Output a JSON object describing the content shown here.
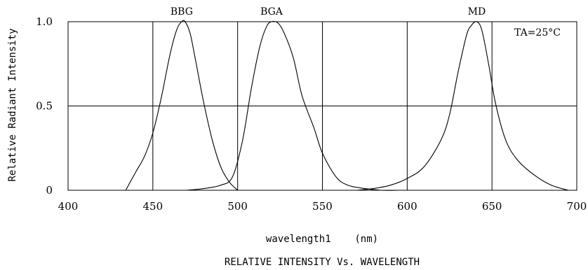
{
  "chart_data": {
    "type": "line",
    "title": "RELATIVE INTENSITY Vs. WAVELENGTH",
    "xlabel": "wavelength1    (nm)",
    "ylabel": "Relative Radiant Intensity",
    "xlim": [
      400,
      700
    ],
    "ylim": [
      0,
      1.0
    ],
    "x_ticks": [
      "400",
      "450",
      "500",
      "550",
      "600",
      "650",
      "700"
    ],
    "y_ticks": [
      "0",
      "0.5",
      "1.0"
    ],
    "grid": true,
    "annotation": "TA=25°C",
    "series": [
      {
        "name": "BBG",
        "x": [
          434,
          440,
          445,
          450,
          455,
          460,
          464,
          467,
          469,
          472,
          475,
          480,
          485,
          490,
          495,
          500
        ],
        "y": [
          0.0,
          0.11,
          0.2,
          0.34,
          0.55,
          0.8,
          0.95,
          1.0,
          1.0,
          0.93,
          0.78,
          0.52,
          0.3,
          0.14,
          0.05,
          0.0
        ]
      },
      {
        "name": "BGA",
        "x": [
          470,
          480,
          490,
          497,
          503,
          508,
          513,
          517,
          520,
          524,
          528,
          533,
          538,
          545,
          550,
          558,
          565,
          575,
          585,
          595
        ],
        "y": [
          0.0,
          0.01,
          0.03,
          0.08,
          0.3,
          0.6,
          0.85,
          0.97,
          1.0,
          0.99,
          0.92,
          0.78,
          0.56,
          0.37,
          0.22,
          0.08,
          0.03,
          0.01,
          0.0,
          0.0
        ]
      },
      {
        "name": "MD",
        "x": [
          570,
          580,
          590,
          600,
          610,
          620,
          625,
          630,
          635,
          638,
          641,
          644,
          648,
          652,
          658,
          665,
          675,
          685,
          695
        ],
        "y": [
          0.0,
          0.01,
          0.03,
          0.07,
          0.14,
          0.3,
          0.45,
          0.7,
          0.92,
          0.98,
          1.0,
          0.95,
          0.75,
          0.52,
          0.3,
          0.18,
          0.09,
          0.03,
          0.0
        ]
      }
    ]
  }
}
